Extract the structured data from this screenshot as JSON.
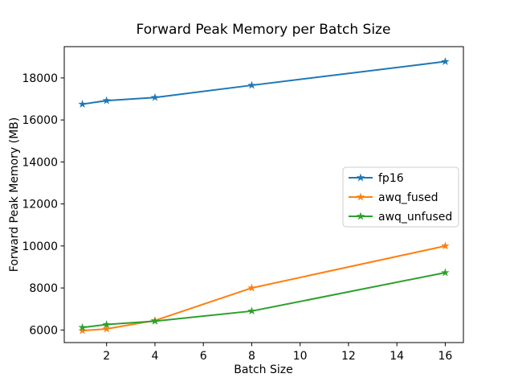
{
  "chart_data": {
    "type": "line",
    "title": "Forward Peak Memory per Batch Size",
    "xlabel": "Batch Size",
    "ylabel": "Forward Peak Memory (MB)",
    "x": [
      1,
      2,
      4,
      8,
      16
    ],
    "series": [
      {
        "name": "fp16",
        "color": "#1f77b4",
        "values": [
          16750,
          16920,
          17070,
          17650,
          18780
        ]
      },
      {
        "name": "awq_fused",
        "color": "#ff7f0e",
        "values": [
          5970,
          6050,
          6450,
          8000,
          10000
        ]
      },
      {
        "name": "awq_unfused",
        "color": "#2ca02c",
        "values": [
          6120,
          6260,
          6420,
          6900,
          8730
        ]
      }
    ],
    "marker": "star",
    "grid": false,
    "xlim": [
      0.25,
      16.75
    ],
    "ylim": [
      5400,
      19490
    ],
    "xticks": [
      2,
      4,
      6,
      8,
      10,
      12,
      14,
      16
    ],
    "yticks": [
      6000,
      8000,
      10000,
      12000,
      14000,
      16000,
      18000
    ],
    "legend": {
      "position": "center right",
      "entries": [
        "fp16",
        "awq_fused",
        "awq_unfused"
      ],
      "border_color": "#cccccc",
      "background": "#ffffff"
    },
    "axis_color": "#000000"
  }
}
